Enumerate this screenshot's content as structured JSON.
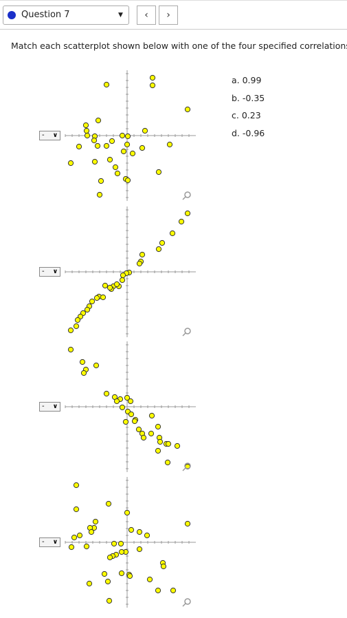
{
  "header": {
    "question": "Question 7"
  },
  "instruction": "Match each scatterplot shown below with one of the four specified correlations.",
  "options": [
    "a. 0.99",
    "b. -0.35",
    "c. 0.23",
    "d. -0.96"
  ],
  "plots": [
    {
      "select": "-",
      "points": [
        [
          -3,
          7.4
        ],
        [
          3.7,
          8.4
        ],
        [
          3.7,
          7.3
        ],
        [
          8.8,
          3.8
        ],
        [
          -4.2,
          2.2
        ],
        [
          -6,
          1.5
        ],
        [
          -5.9,
          0.7
        ],
        [
          -4.7,
          -0.1
        ],
        [
          -5.8,
          0
        ],
        [
          -4.8,
          -0.7
        ],
        [
          -4.3,
          -1.5
        ],
        [
          -3,
          -1.5
        ],
        [
          -2.2,
          -0.8
        ],
        [
          -0.7,
          0
        ],
        [
          0,
          -1.3
        ],
        [
          0.1,
          -0.1
        ],
        [
          2.6,
          0.7
        ],
        [
          2.2,
          -1.8
        ],
        [
          6.2,
          -1.3
        ],
        [
          -7,
          -1.6
        ],
        [
          -8.2,
          -4
        ],
        [
          -4.7,
          -3.8
        ],
        [
          -2.5,
          -3.5
        ],
        [
          -1.7,
          -4.6
        ],
        [
          -1.4,
          -5.5
        ],
        [
          -0.5,
          -2.3
        ],
        [
          0.8,
          -2.6
        ],
        [
          -0.2,
          -6.3
        ],
        [
          0.1,
          -6.5
        ],
        [
          -3.8,
          -6.6
        ],
        [
          -4,
          -8.6
        ],
        [
          4.6,
          -5.3
        ]
      ]
    },
    {
      "select": "-",
      "points": [
        [
          8.8,
          8.5
        ],
        [
          7.9,
          7.3
        ],
        [
          6.6,
          5.6
        ],
        [
          5.1,
          4.2
        ],
        [
          4.6,
          3.3
        ],
        [
          2.2,
          2.5
        ],
        [
          2,
          1.5
        ],
        [
          1.8,
          1.2
        ],
        [
          0.3,
          -0.1
        ],
        [
          -0.1,
          -0.2
        ],
        [
          -0.6,
          -0.5
        ],
        [
          -0.7,
          -1.2
        ],
        [
          -1.2,
          -2.1
        ],
        [
          -2,
          -2.1
        ],
        [
          -2.3,
          -2.5
        ],
        [
          -3.2,
          -2
        ],
        [
          -4.1,
          -3.6
        ],
        [
          -3.5,
          -3.7
        ],
        [
          -4.4,
          -3.8
        ],
        [
          -5.1,
          -4.3
        ],
        [
          -5.5,
          -5
        ],
        [
          -5.8,
          -5.5
        ],
        [
          -6.4,
          -6
        ],
        [
          -6.8,
          -6.5
        ],
        [
          -7.2,
          -7
        ],
        [
          -7.4,
          -7.9
        ],
        [
          -8.2,
          -8.5
        ],
        [
          -8.2,
          -11.3
        ],
        [
          -6.5,
          -13.1
        ],
        [
          -6,
          -14.2
        ],
        [
          -6.3,
          -14.7
        ],
        [
          -4.5,
          -13.6
        ],
        [
          -1.5,
          -1.8
        ],
        [
          -2.5,
          -2.3
        ]
      ]
    },
    {
      "select": "-",
      "points": [
        [
          -3,
          1.9
        ],
        [
          -1.8,
          1.4
        ],
        [
          -1,
          1.1
        ],
        [
          0,
          1.3
        ],
        [
          0.5,
          0.8
        ],
        [
          -0.7,
          -0.1
        ],
        [
          0.1,
          -0.7
        ],
        [
          0.6,
          -1.1
        ],
        [
          1.2,
          -1.9
        ],
        [
          -0.2,
          -2.2
        ],
        [
          1.1,
          -2.1
        ],
        [
          3.6,
          -1.3
        ],
        [
          1.7,
          -3.3
        ],
        [
          2.2,
          -3.9
        ],
        [
          3.5,
          -3.9
        ],
        [
          2.4,
          -4.5
        ],
        [
          4.5,
          -2.9
        ],
        [
          4.7,
          -4.5
        ],
        [
          4.8,
          -5.1
        ],
        [
          5.7,
          -5.4
        ],
        [
          6,
          -5.4
        ],
        [
          4.5,
          -6.4
        ],
        [
          7.3,
          -5.7
        ],
        [
          5.9,
          -8.1
        ],
        [
          8.8,
          -8.7
        ],
        [
          -1.5,
          0.8
        ]
      ]
    },
    {
      "select": "-",
      "points": [
        [
          -7.4,
          8.3
        ],
        [
          -7.4,
          4.8
        ],
        [
          -2.7,
          5.6
        ],
        [
          0,
          4.3
        ],
        [
          -4.6,
          3
        ],
        [
          -4.8,
          2.1
        ],
        [
          -5.4,
          2.1
        ],
        [
          -5.2,
          1.5
        ],
        [
          -6.9,
          1
        ],
        [
          -7.7,
          0.7
        ],
        [
          -8.1,
          -0.7
        ],
        [
          -5.9,
          -0.6
        ],
        [
          -1.9,
          -0.2
        ],
        [
          -0.9,
          -0.2
        ],
        [
          0.6,
          1.8
        ],
        [
          1.8,
          1.5
        ],
        [
          2.9,
          1
        ],
        [
          8.8,
          2.7
        ],
        [
          -0.2,
          -1.4
        ],
        [
          -0.8,
          -1.4
        ],
        [
          -1.6,
          -1.8
        ],
        [
          -2.1,
          -2
        ],
        [
          -2.5,
          -2.2
        ],
        [
          1.8,
          -1
        ],
        [
          5.2,
          -3
        ],
        [
          5.3,
          -3.5
        ],
        [
          -3.3,
          -4.6
        ],
        [
          -0.8,
          -4.5
        ],
        [
          0.3,
          -4.7
        ],
        [
          0.4,
          -4.9
        ],
        [
          -5.5,
          -6
        ],
        [
          -2.8,
          -5.7
        ],
        [
          3.3,
          -5.4
        ],
        [
          4.5,
          -7
        ],
        [
          6.7,
          -7
        ],
        [
          -2.6,
          -8.5
        ]
      ]
    }
  ]
}
